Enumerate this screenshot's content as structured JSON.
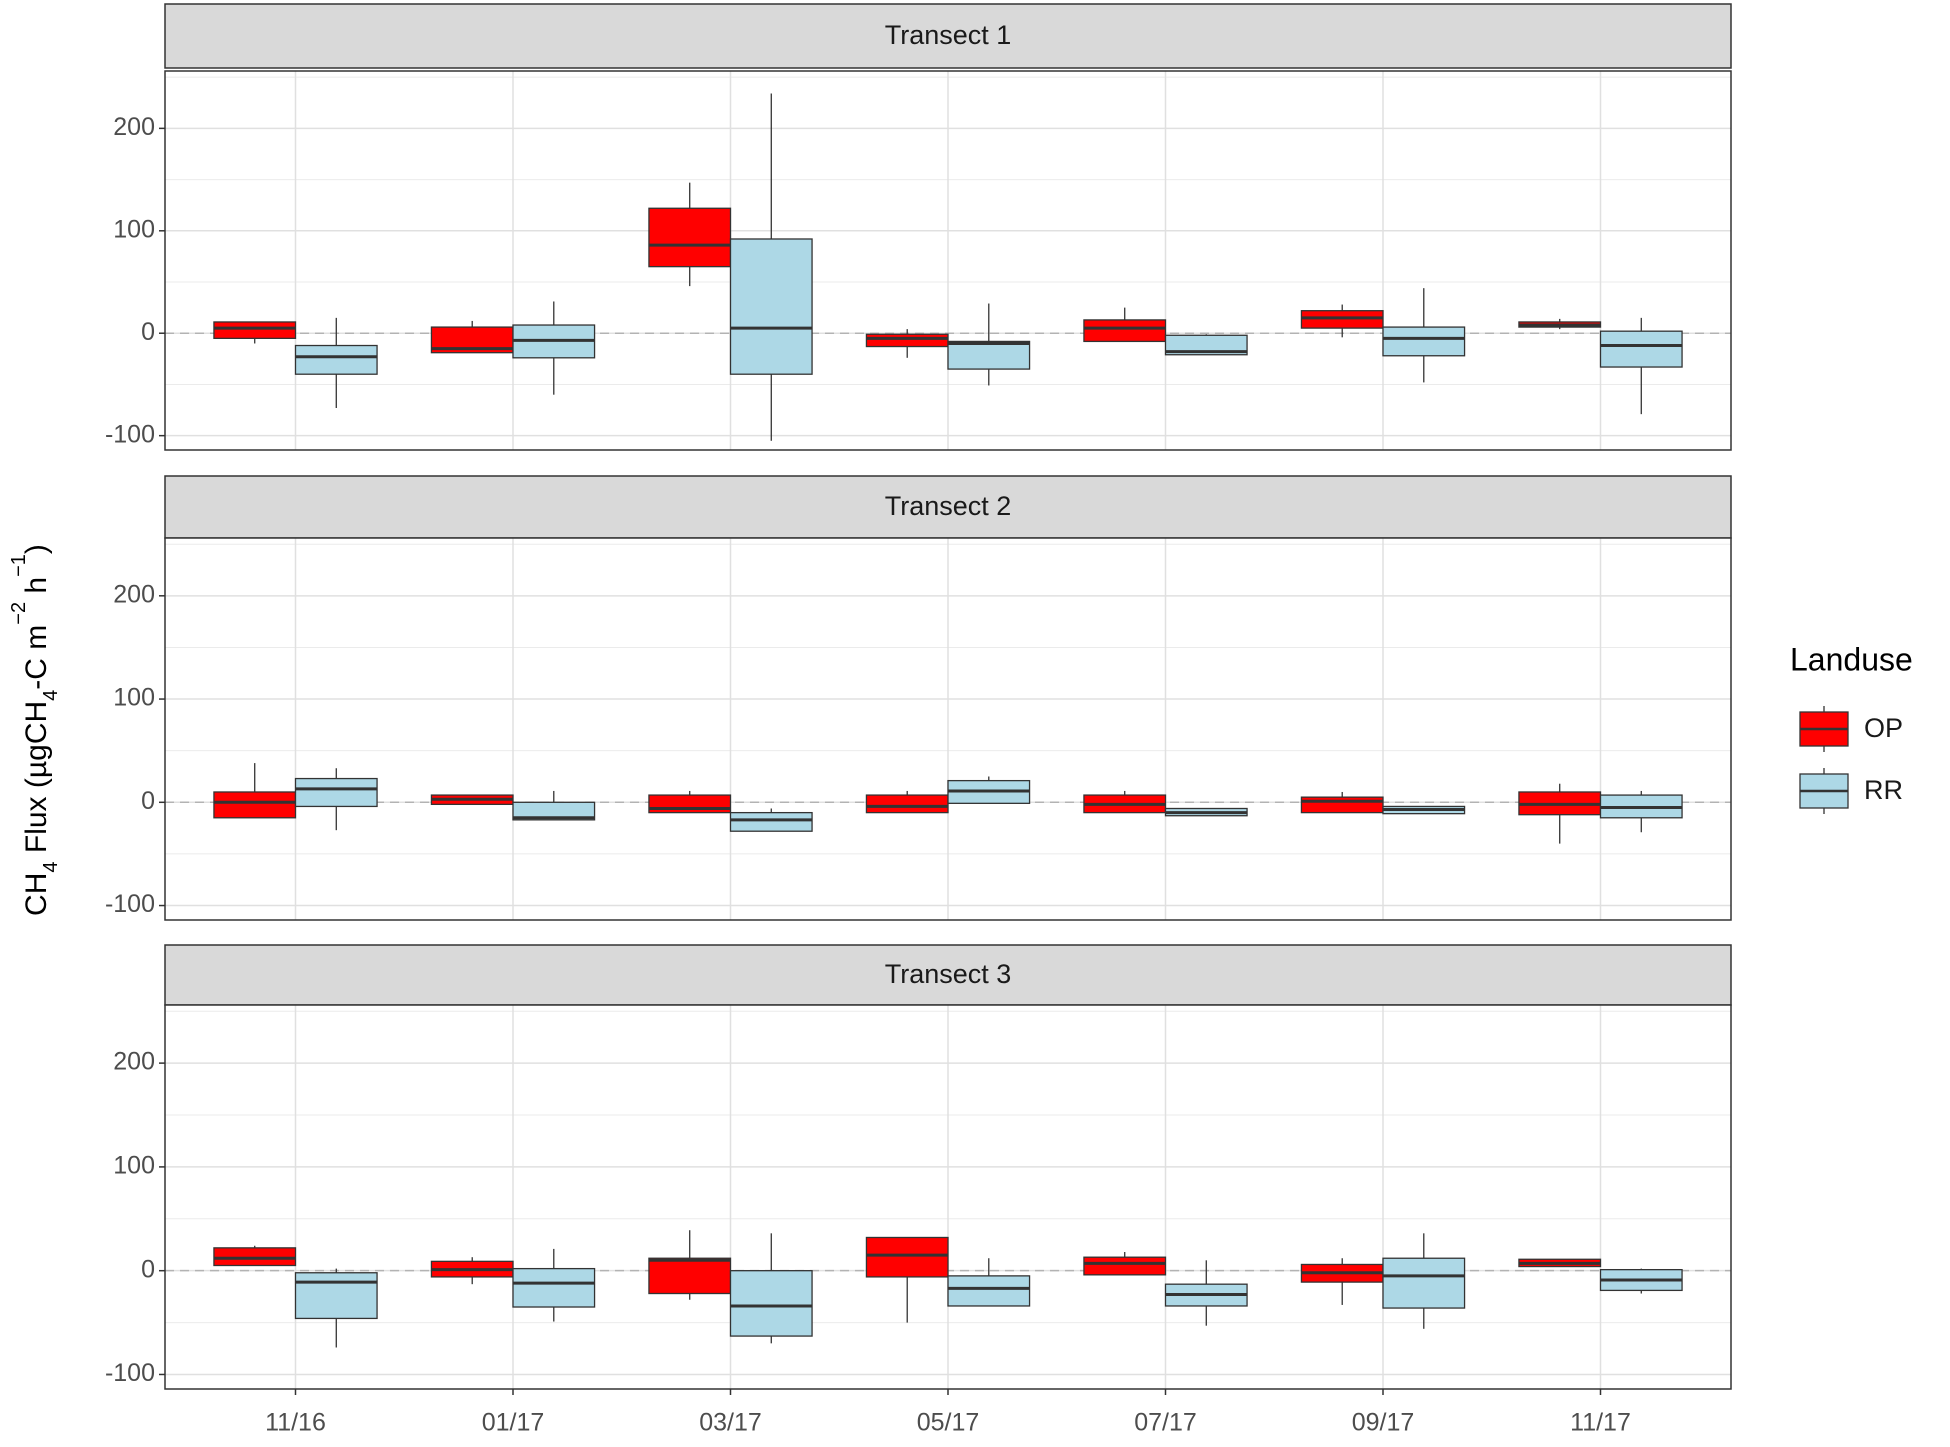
{
  "chart_data": {
    "type": "box",
    "ylabel_parts": [
      {
        "text": "CH"
      },
      {
        "text": "4",
        "shift": "sub"
      },
      {
        "text": " Flux  (µgCH"
      },
      {
        "text": "4",
        "shift": "sub"
      },
      {
        "text": "-C m"
      },
      {
        "text": "−2",
        "shift": "super"
      },
      {
        "text": " h"
      },
      {
        "text": "−1",
        "shift": "super"
      },
      {
        "text": ")"
      }
    ],
    "categories": [
      "11/16",
      "01/17",
      "03/17",
      "05/17",
      "07/17",
      "09/17",
      "11/17"
    ],
    "ylim": [
      -114,
      256
    ],
    "yticks": [
      -100,
      0,
      100,
      200
    ],
    "minor_yticks": [
      -50,
      50,
      150,
      250
    ],
    "grid": true,
    "reference_line": 0,
    "legend_title": "Landuse",
    "legend_position": "right",
    "series": [
      {
        "name": "OP",
        "color": "#ff0000"
      },
      {
        "name": "RR",
        "color": "#add8e6"
      }
    ],
    "facets": [
      {
        "title": "Transect 1",
        "series": [
          {
            "values": [
              {
                "min": -10,
                "q1": -5,
                "median": 5,
                "q3": 11,
                "max": 11
              },
              {
                "min": -19,
                "q1": -19,
                "median": -15,
                "q3": 6,
                "max": 12
              },
              {
                "min": 46,
                "q1": 65,
                "median": 86,
                "q3": 122,
                "max": 147
              },
              {
                "min": -24,
                "q1": -13,
                "median": -5,
                "q3": -1,
                "max": 4
              },
              {
                "min": -8,
                "q1": -8,
                "median": 5,
                "q3": 13,
                "max": 25
              },
              {
                "min": -4,
                "q1": 5,
                "median": 15,
                "q3": 22,
                "max": 28
              },
              {
                "min": 4,
                "q1": 6,
                "median": 8,
                "q3": 11,
                "max": 14
              }
            ]
          },
          {
            "values": [
              {
                "min": -73,
                "q1": -40,
                "median": -23,
                "q3": -12,
                "max": 15
              },
              {
                "min": -60,
                "q1": -24,
                "median": -7,
                "q3": 8,
                "max": 31
              },
              {
                "min": -105,
                "q1": -40,
                "median": 5,
                "q3": 92,
                "max": 234
              },
              {
                "min": -51,
                "q1": -35,
                "median": -10,
                "q3": -8,
                "max": 29
              },
              {
                "min": -21,
                "q1": -21,
                "median": -18,
                "q3": -2,
                "max": -1
              },
              {
                "min": -48,
                "q1": -22,
                "median": -5,
                "q3": 6,
                "max": 44
              },
              {
                "min": -79,
                "q1": -33,
                "median": -12,
                "q3": 2,
                "max": 15
              }
            ]
          }
        ]
      },
      {
        "title": "Transect 2",
        "series": [
          {
            "values": [
              {
                "min": -15,
                "q1": -15,
                "median": 0,
                "q3": 10,
                "max": 38
              },
              {
                "min": -2,
                "q1": -2,
                "median": 3,
                "q3": 7,
                "max": 7
              },
              {
                "min": -10,
                "q1": -10,
                "median": -6,
                "q3": 7,
                "max": 11
              },
              {
                "min": -10,
                "q1": -10,
                "median": -4,
                "q3": 7,
                "max": 11
              },
              {
                "min": -10,
                "q1": -10,
                "median": -2,
                "q3": 7,
                "max": 11
              },
              {
                "min": -10,
                "q1": -10,
                "median": 1,
                "q3": 5,
                "max": 10
              },
              {
                "min": -40,
                "q1": -12,
                "median": -2,
                "q3": 10,
                "max": 18
              }
            ]
          },
          {
            "values": [
              {
                "min": -27,
                "q1": -4,
                "median": 13,
                "q3": 23,
                "max": 33
              },
              {
                "min": -17,
                "q1": -17,
                "median": -15,
                "q3": 0,
                "max": 11
              },
              {
                "min": -28,
                "q1": -28,
                "median": -17,
                "q3": -10,
                "max": -6
              },
              {
                "min": -1,
                "q1": -1,
                "median": 11,
                "q3": 21,
                "max": 25
              },
              {
                "min": -13,
                "q1": -13,
                "median": -10,
                "q3": -6,
                "max": -6
              },
              {
                "min": -11,
                "q1": -11,
                "median": -7,
                "q3": -4,
                "max": -4
              },
              {
                "min": -29,
                "q1": -15,
                "median": -5,
                "q3": 7,
                "max": 11
              }
            ]
          }
        ]
      },
      {
        "title": "Transect 3",
        "series": [
          {
            "values": [
              {
                "min": 5,
                "q1": 5,
                "median": 12,
                "q3": 22,
                "max": 24
              },
              {
                "min": -13,
                "q1": -6,
                "median": 1,
                "q3": 9,
                "max": 13
              },
              {
                "min": -28,
                "q1": -22,
                "median": 10,
                "q3": 12,
                "max": 39
              },
              {
                "min": -50,
                "q1": -6,
                "median": 15,
                "q3": 32,
                "max": 32
              },
              {
                "min": -4,
                "q1": -4,
                "median": 7,
                "q3": 13,
                "max": 18
              },
              {
                "min": -33,
                "q1": -11,
                "median": -2,
                "q3": 6,
                "max": 12
              },
              {
                "min": 4,
                "q1": 4,
                "median": 7,
                "q3": 11,
                "max": 11
              }
            ]
          },
          {
            "values": [
              {
                "min": -74,
                "q1": -46,
                "median": -11,
                "q3": -2,
                "max": 2
              },
              {
                "min": -49,
                "q1": -35,
                "median": -12,
                "q3": 2,
                "max": 21
              },
              {
                "min": -70,
                "q1": -63,
                "median": -34,
                "q3": 0,
                "max": 36
              },
              {
                "min": -34,
                "q1": -34,
                "median": -17,
                "q3": -5,
                "max": 12
              },
              {
                "min": -53,
                "q1": -34,
                "median": -23,
                "q3": -13,
                "max": 10
              },
              {
                "min": -56,
                "q1": -36,
                "median": -5,
                "q3": 12,
                "max": 36
              },
              {
                "min": -22,
                "q1": -19,
                "median": -9,
                "q3": 1,
                "max": 2
              }
            ]
          }
        ]
      }
    ]
  }
}
